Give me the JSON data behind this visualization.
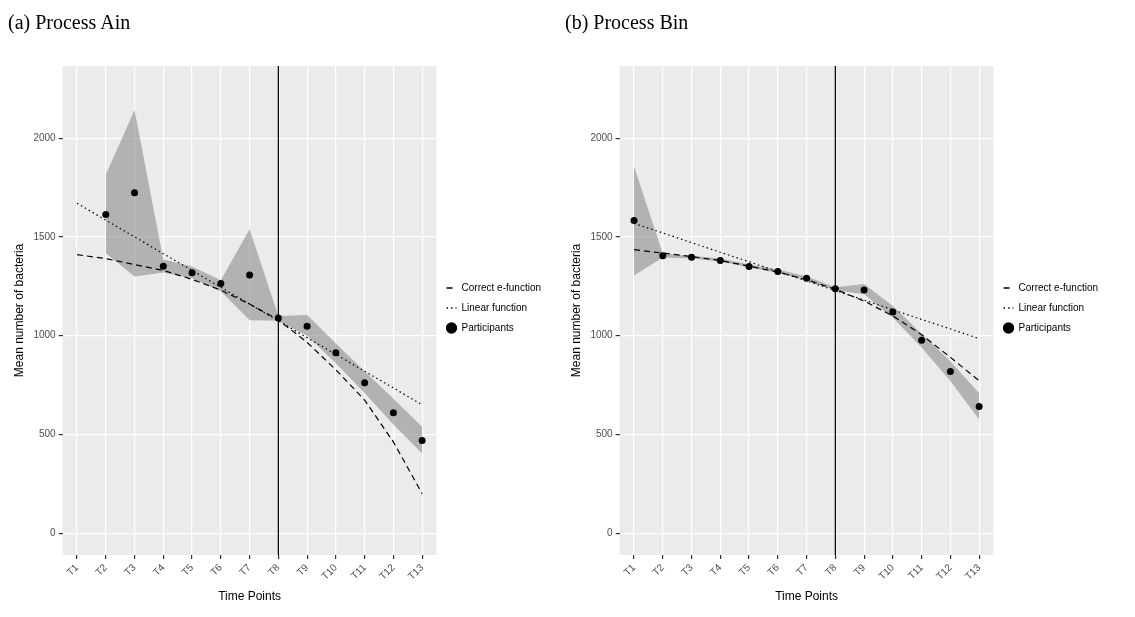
{
  "chart_data": [
    {
      "type": "line",
      "title": "(a) Process Ain",
      "xlabel": "Time Points",
      "ylabel": "Mean number of bacteria",
      "categories": [
        "T1",
        "T2",
        "T3",
        "T4",
        "T5",
        "T6",
        "T7",
        "T8",
        "T9",
        "T10",
        "T11",
        "T12",
        "T13"
      ],
      "ylim": [
        -110,
        2365
      ],
      "yticks": [
        0,
        500,
        1000,
        1500,
        2000
      ],
      "grid": true,
      "legend": "right",
      "ref_lines": [
        {
          "axis": "x",
          "value": "T8",
          "color": "#000000"
        }
      ],
      "series": [
        {
          "name": "Correct e-function",
          "type": "line",
          "color": "#000000",
          "line_style": "dashed",
          "marker": "none",
          "values": [
            1410,
            1390,
            1360,
            1330,
            1285,
            1230,
            1160,
            1080,
            966,
            827,
            674,
            462,
            200
          ]
        },
        {
          "name": "Linear function",
          "type": "line",
          "color": "#000000",
          "line_style": "dotted",
          "marker": "none",
          "values": [
            1670,
            1585,
            1500,
            1415,
            1330,
            1245,
            1160,
            1075,
            990,
            905,
            820,
            735,
            650
          ]
        },
        {
          "name": "Participants",
          "type": "scatter",
          "color": "#000000",
          "marker": "circle",
          "values": [
            null,
            1613,
            1723,
            1351,
            1319,
            1264,
            1307,
            1089,
            1047,
            913,
            762,
            610,
            469
          ],
          "lower": [
            null,
            1417,
            1299,
            1320,
            1290,
            1225,
            1078,
            1075,
            1000,
            860,
            710,
            550,
            403
          ],
          "upper": [
            null,
            1814,
            2142,
            1385,
            1350,
            1280,
            1539,
            1100,
            1105,
            960,
            820,
            680,
            539
          ]
        }
      ]
    },
    {
      "type": "line",
      "title": "(b) Process Bin",
      "xlabel": "Time Points",
      "ylabel": "Mean number of bacteria",
      "categories": [
        "T1",
        "T2",
        "T3",
        "T4",
        "T5",
        "T6",
        "T7",
        "T8",
        "T9",
        "T10",
        "T11",
        "T12",
        "T13"
      ],
      "ylim": [
        -110,
        2365
      ],
      "yticks": [
        0,
        500,
        1000,
        1500,
        2000
      ],
      "grid": true,
      "legend": "right",
      "ref_lines": [
        {
          "axis": "x",
          "value": "T8",
          "color": "#000000"
        }
      ],
      "series": [
        {
          "name": "Correct e-function",
          "type": "line",
          "color": "#000000",
          "line_style": "dashed",
          "marker": "none",
          "values": [
            1435,
            1418,
            1400,
            1380,
            1352,
            1322,
            1283,
            1235,
            1175,
            1100,
            1005,
            890,
            772
          ]
        },
        {
          "name": "Linear function",
          "type": "line",
          "color": "#000000",
          "line_style": "dotted",
          "marker": "none",
          "values": [
            1568,
            1520,
            1471,
            1422,
            1374,
            1325,
            1277,
            1228,
            1180,
            1131,
            1082,
            1034,
            985
          ]
        },
        {
          "name": "Participants",
          "type": "scatter",
          "color": "#000000",
          "marker": "circle",
          "values": [
            1583,
            1405,
            1397,
            1381,
            1350,
            1325,
            1291,
            1238,
            1231,
            1120,
            977,
            819,
            641
          ],
          "lower": [
            1304,
            1395,
            1390,
            1375,
            1345,
            1318,
            1280,
            1230,
            1210,
            1090,
            940,
            770,
            576
          ],
          "upper": [
            1858,
            1415,
            1405,
            1390,
            1360,
            1335,
            1300,
            1245,
            1261,
            1150,
            1010,
            870,
            709
          ]
        }
      ]
    }
  ]
}
